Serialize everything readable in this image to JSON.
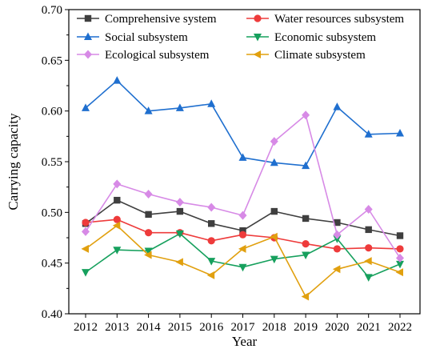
{
  "chart_data": {
    "type": "line",
    "xlabel": "Year",
    "ylabel": "Carrying capacity",
    "categories": [
      "2012",
      "2013",
      "2014",
      "2015",
      "2016",
      "2017",
      "2018",
      "2019",
      "2020",
      "2021",
      "2022"
    ],
    "ylim": [
      0.4,
      0.7
    ],
    "yticks": [
      "0.40",
      "0.45",
      "0.50",
      "0.55",
      "0.60",
      "0.65",
      "0.70"
    ],
    "legend_position": "top",
    "grid": false,
    "series": [
      {
        "name": "Comprehensive system",
        "color": "#3f3f3f",
        "marker": "square",
        "values": [
          0.489,
          0.512,
          0.498,
          0.501,
          0.489,
          0.482,
          0.501,
          0.494,
          0.49,
          0.483,
          0.477
        ]
      },
      {
        "name": "Water resources subsystem",
        "color": "#ee3b3b",
        "marker": "circle",
        "values": [
          0.49,
          0.493,
          0.48,
          0.48,
          0.472,
          0.478,
          0.475,
          0.469,
          0.464,
          0.465,
          0.464
        ]
      },
      {
        "name": "Social subsystem",
        "color": "#1f6fcf",
        "marker": "triangle-up",
        "values": [
          0.603,
          0.63,
          0.6,
          0.603,
          0.607,
          0.554,
          0.549,
          0.546,
          0.604,
          0.577,
          0.578
        ]
      },
      {
        "name": "Economic subsystem",
        "color": "#16a05d",
        "marker": "triangle-down",
        "values": [
          0.441,
          0.463,
          0.462,
          0.479,
          0.452,
          0.446,
          0.454,
          0.458,
          0.474,
          0.436,
          0.449
        ]
      },
      {
        "name": "Ecological subsystem",
        "color": "#d78ae6",
        "marker": "diamond",
        "values": [
          0.481,
          0.528,
          0.518,
          0.51,
          0.505,
          0.497,
          0.57,
          0.596,
          0.478,
          0.503,
          0.455
        ]
      },
      {
        "name": "Climate subsystem",
        "color": "#e1a00f",
        "marker": "triangle-left",
        "values": [
          0.464,
          0.487,
          0.458,
          0.451,
          0.438,
          0.464,
          0.476,
          0.417,
          0.444,
          0.452,
          0.441
        ]
      }
    ]
  }
}
